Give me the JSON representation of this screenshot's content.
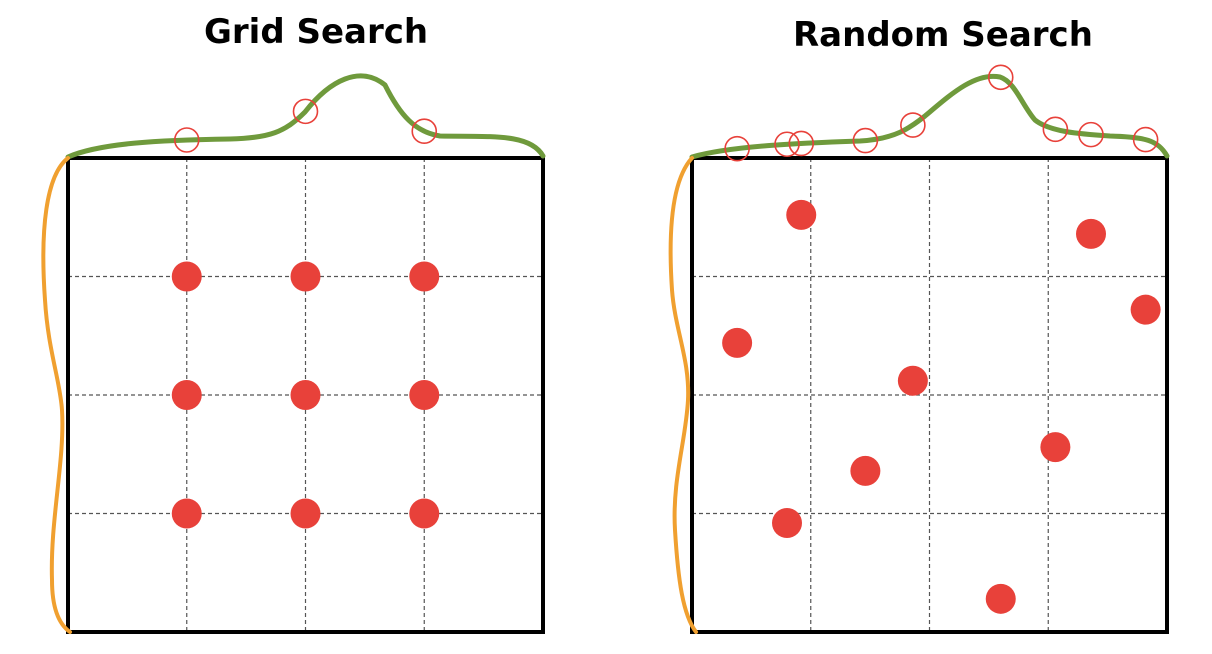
{
  "panels": [
    {
      "title": "Grid Search",
      "points": [
        [
          0.25,
          0.25
        ],
        [
          0.5,
          0.25
        ],
        [
          0.75,
          0.25
        ],
        [
          0.25,
          0.5
        ],
        [
          0.5,
          0.5
        ],
        [
          0.75,
          0.5
        ],
        [
          0.25,
          0.75
        ],
        [
          0.5,
          0.75
        ],
        [
          0.75,
          0.75
        ]
      ]
    },
    {
      "title": "Random Search",
      "points": [
        [
          0.23,
          0.12
        ],
        [
          0.84,
          0.16
        ],
        [
          0.955,
          0.32
        ],
        [
          0.095,
          0.39
        ],
        [
          0.465,
          0.47
        ],
        [
          0.765,
          0.61
        ],
        [
          0.365,
          0.66
        ],
        [
          0.2,
          0.77
        ],
        [
          0.65,
          0.93
        ]
      ]
    }
  ],
  "colors": {
    "point": "#e8413a",
    "marginal_top": "#6f9a3c",
    "marginal_left": "#f0a030",
    "frame": "#000000",
    "grid": "#555555"
  }
}
